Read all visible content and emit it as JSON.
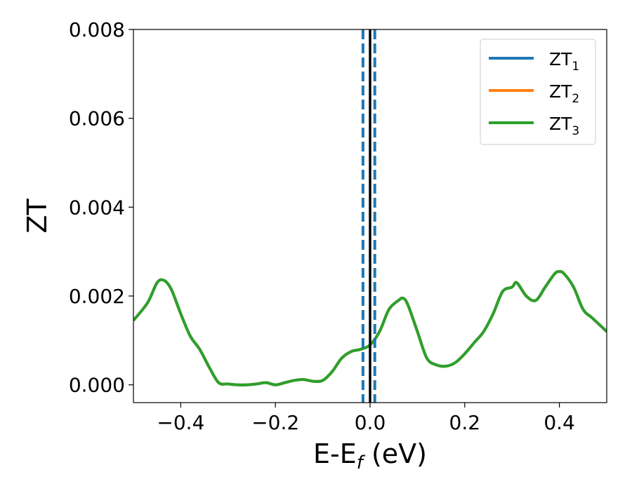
{
  "chart_data": {
    "type": "line",
    "title": "",
    "xlabel": "E-E",
    "xlabel_sub": "f",
    "xlabel_unit": " (eV)",
    "ylabel": "ZT",
    "xlim": [
      -0.5,
      0.5
    ],
    "ylim": [
      -0.0004,
      0.008
    ],
    "xticks": [
      -0.4,
      -0.2,
      0.0,
      0.2,
      0.4
    ],
    "xtick_labels": [
      "−0.4",
      "−0.2",
      "0.0",
      "0.2",
      "0.4"
    ],
    "yticks": [
      0.0,
      0.002,
      0.004,
      0.006,
      0.008
    ],
    "ytick_labels": [
      "0.000",
      "0.002",
      "0.004",
      "0.006",
      "0.008"
    ],
    "grid": false,
    "legend_position": "top-right",
    "vertical_lines": [
      {
        "x": 0.0,
        "color": "#000000",
        "style": "solid"
      },
      {
        "x": -0.015,
        "color": "#1f77b4",
        "style": "dashed"
      },
      {
        "x": 0.01,
        "color": "#1f77b4",
        "style": "dashed"
      }
    ],
    "x": [
      -0.5,
      -0.47,
      -0.45,
      -0.435,
      -0.42,
      -0.4,
      -0.38,
      -0.36,
      -0.34,
      -0.32,
      -0.3,
      -0.28,
      -0.26,
      -0.24,
      -0.22,
      -0.2,
      -0.18,
      -0.16,
      -0.14,
      -0.12,
      -0.1,
      -0.08,
      -0.06,
      -0.04,
      -0.02,
      0.0,
      0.02,
      0.04,
      0.06,
      0.07,
      0.08,
      0.1,
      0.12,
      0.14,
      0.16,
      0.18,
      0.2,
      0.22,
      0.24,
      0.26,
      0.28,
      0.3,
      0.31,
      0.33,
      0.35,
      0.37,
      0.39,
      0.4,
      0.41,
      0.43,
      0.45,
      0.47,
      0.5
    ],
    "series": [
      {
        "name": "ZT",
        "name_sub": "1",
        "color": "#1f77b4",
        "values": [
          0.00145,
          0.00185,
          0.0023,
          0.00235,
          0.00215,
          0.0016,
          0.0011,
          0.0008,
          0.0004,
          5e-05,
          2e-05,
          0.0,
          0.0,
          2e-05,
          5e-05,
          0.0,
          5e-05,
          0.0001,
          0.00012,
          8e-05,
          0.0001,
          0.0003,
          0.0006,
          0.00075,
          0.0008,
          0.0009,
          0.0012,
          0.0017,
          0.0019,
          0.00195,
          0.0018,
          0.0012,
          0.0006,
          0.00045,
          0.00042,
          0.0005,
          0.0007,
          0.00095,
          0.0012,
          0.0016,
          0.0021,
          0.0022,
          0.0023,
          0.002,
          0.0019,
          0.0022,
          0.0025,
          0.00255,
          0.0025,
          0.0022,
          0.0017,
          0.0015,
          0.0012
        ]
      },
      {
        "name": "ZT",
        "name_sub": "2",
        "color": "#ff7f0e",
        "values": [
          0.00145,
          0.00185,
          0.0023,
          0.00235,
          0.00215,
          0.0016,
          0.0011,
          0.0008,
          0.0004,
          5e-05,
          2e-05,
          0.0,
          0.0,
          2e-05,
          5e-05,
          0.0,
          5e-05,
          0.0001,
          0.00012,
          8e-05,
          0.0001,
          0.0003,
          0.0006,
          0.00075,
          0.0008,
          0.0009,
          0.0012,
          0.0017,
          0.0019,
          0.00195,
          0.0018,
          0.0012,
          0.0006,
          0.00045,
          0.00042,
          0.0005,
          0.0007,
          0.00095,
          0.0012,
          0.0016,
          0.0021,
          0.0022,
          0.0023,
          0.002,
          0.0019,
          0.0022,
          0.0025,
          0.00255,
          0.0025,
          0.0022,
          0.0017,
          0.0015,
          0.0012
        ]
      },
      {
        "name": "ZT",
        "name_sub": "3",
        "color": "#2ca02c",
        "values": [
          0.00145,
          0.00185,
          0.0023,
          0.00235,
          0.00215,
          0.0016,
          0.0011,
          0.0008,
          0.0004,
          5e-05,
          2e-05,
          0.0,
          0.0,
          2e-05,
          5e-05,
          0.0,
          5e-05,
          0.0001,
          0.00012,
          8e-05,
          0.0001,
          0.0003,
          0.0006,
          0.00075,
          0.0008,
          0.0009,
          0.0012,
          0.0017,
          0.0019,
          0.00195,
          0.0018,
          0.0012,
          0.0006,
          0.00045,
          0.00042,
          0.0005,
          0.0007,
          0.00095,
          0.0012,
          0.0016,
          0.0021,
          0.0022,
          0.0023,
          0.002,
          0.0019,
          0.0022,
          0.0025,
          0.00255,
          0.0025,
          0.0022,
          0.0017,
          0.0015,
          0.0012
        ]
      }
    ]
  }
}
